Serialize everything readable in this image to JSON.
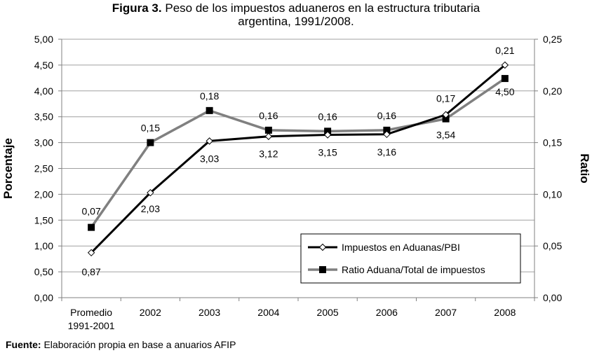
{
  "title": {
    "bold": "Figura 3.",
    "line1": "Peso de los impuestos aduaneros en la estructura tributaria",
    "line2": "argentina, 1991/2008."
  },
  "source": {
    "label": "Fuente:",
    "text": "Elaboración propia en base a anuarios AFIP"
  },
  "chart_data": {
    "type": "line",
    "categories": [
      "Promedio\n1991-2001",
      "2002",
      "2003",
      "2004",
      "2005",
      "2006",
      "2007",
      "2008"
    ],
    "ylabel": "Porcentaje",
    "y2label": "Ratio",
    "ylim": [
      0,
      5
    ],
    "y2lim": [
      0,
      0.25
    ],
    "yticks": [
      "0,00",
      "0,50",
      "1,00",
      "1,50",
      "2,00",
      "2,50",
      "3,00",
      "3,50",
      "4,00",
      "4,50",
      "5,00"
    ],
    "y2ticks": [
      "0,00",
      "0,05",
      "0,10",
      "0,15",
      "0,20",
      "0,25"
    ],
    "series": [
      {
        "name": "Impuestos en Aduanas/PBI",
        "axis": "left",
        "color": "#000000",
        "marker": "diamond-open",
        "values": [
          0.87,
          2.03,
          3.03,
          3.12,
          3.15,
          3.16,
          3.54,
          4.5
        ],
        "labels": [
          "0,87",
          "2,03",
          "3,03",
          "3,12",
          "3,15",
          "3,16",
          "3,54",
          "4,50"
        ]
      },
      {
        "name": "Ratio Aduana/Total de impuestos",
        "axis": "right",
        "color": "#808080",
        "marker": "square-filled",
        "values": [
          0.068,
          0.15,
          0.181,
          0.162,
          0.161,
          0.162,
          0.173,
          0.212
        ],
        "labels": [
          "0,07",
          "0,15",
          "0,18",
          "0,16",
          "0,16",
          "0,16",
          "0,17",
          "0,21"
        ]
      }
    ],
    "legend_position": "bottom-right",
    "grid": true
  }
}
